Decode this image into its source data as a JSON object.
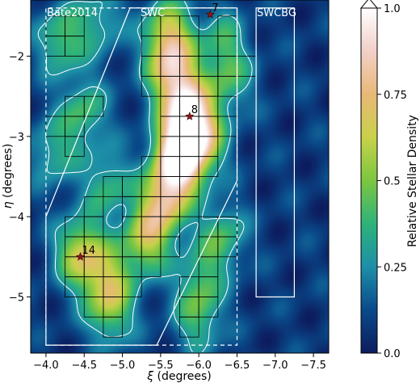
{
  "chart_data": {
    "type": "heatmap",
    "xlabel": "ξ (degrees)",
    "ylabel": "η (degrees)",
    "xlim": [
      -3.8,
      -7.7
    ],
    "ylim": [
      -5.7,
      -1.3
    ],
    "xticks": [
      -4.0,
      -4.5,
      -5.0,
      -5.5,
      -6.0,
      -6.5,
      -7.0,
      -7.5
    ],
    "xtick_labels": [
      "−4.0",
      "−4.5",
      "−5.0",
      "−5.5",
      "−6.0",
      "−6.5",
      "−7.0",
      "−7.5"
    ],
    "yticks": [
      -2,
      -3,
      -4,
      -5
    ],
    "ytick_labels": [
      "−2",
      "−3",
      "−4",
      "−5"
    ],
    "colorbar": {
      "label": "Relative Stellar Density",
      "range": [
        0.0,
        1.0
      ],
      "ticks": [
        0.0,
        0.25,
        0.5,
        0.75,
        1.0
      ],
      "tick_labels": [
        "0.0",
        "0.25",
        "0.5",
        "0.75",
        "1.0"
      ],
      "extend": "max",
      "colors": [
        "#0c1c5e",
        "#0a4a8a",
        "#1d8fa8",
        "#2eb37a",
        "#7cc640",
        "#c8d14a",
        "#e9b877",
        "#f2d0c8",
        "#ffffff"
      ]
    },
    "regions": [
      {
        "label": "Bate2014",
        "style": "dashed",
        "polygon": [
          [
            -4.0,
            -5.6
          ],
          [
            -6.5,
            -5.6
          ],
          [
            -6.5,
            -1.4
          ],
          [
            -4.0,
            -1.4
          ]
        ]
      },
      {
        "label": "SWC",
        "style": "solid",
        "polygon": [
          [
            -5.1,
            -1.4
          ],
          [
            -6.5,
            -1.4
          ],
          [
            -6.5,
            -3.55
          ],
          [
            -5.45,
            -5.6
          ],
          [
            -4.0,
            -5.6
          ],
          [
            -4.0,
            -4.0
          ]
        ]
      },
      {
        "label": "SWCBG",
        "style": "solid",
        "polygon": [
          [
            -6.75,
            -1.4
          ],
          [
            -7.25,
            -1.4
          ],
          [
            -7.25,
            -5.0
          ],
          [
            -6.75,
            -5.0
          ]
        ]
      }
    ],
    "stars": [
      {
        "label": "7",
        "xi": -6.15,
        "eta": -1.48
      },
      {
        "label": "8",
        "xi": -5.88,
        "eta": -2.75
      },
      {
        "label": "14",
        "xi": -4.45,
        "eta": -4.5
      }
    ],
    "density_peaks": [
      {
        "xi": -5.75,
        "eta": -3.25,
        "density": 1.0
      },
      {
        "xi": -5.85,
        "eta": -2.7,
        "density": 0.78
      },
      {
        "xi": -5.65,
        "eta": -2.2,
        "density": 0.6
      },
      {
        "xi": -5.55,
        "eta": -3.8,
        "density": 0.62
      },
      {
        "xi": -5.6,
        "eta": -1.7,
        "density": 0.52
      },
      {
        "xi": -5.3,
        "eta": -4.3,
        "density": 0.5
      },
      {
        "xi": -4.45,
        "eta": -4.45,
        "density": 0.55
      },
      {
        "xi": -4.8,
        "eta": -4.8,
        "density": 0.42
      },
      {
        "xi": -4.85,
        "eta": -5.2,
        "density": 0.32
      },
      {
        "xi": -6.05,
        "eta": -3.05,
        "density": 0.45
      },
      {
        "xi": -4.5,
        "eta": -2.7,
        "density": 0.32
      },
      {
        "xi": -4.2,
        "eta": -1.8,
        "density": 0.36
      },
      {
        "xi": -4.8,
        "eta": -3.6,
        "density": 0.3
      },
      {
        "xi": -6.3,
        "eta": -4.25,
        "density": 0.33
      },
      {
        "xi": -6.4,
        "eta": -2.3,
        "density": 0.28
      },
      {
        "xi": -4.1,
        "eta": -3.2,
        "density": 0.27
      },
      {
        "xi": -6.0,
        "eta": -5.3,
        "density": 0.28
      },
      {
        "xi": -4.7,
        "eta": -1.55,
        "density": 0.25
      },
      {
        "xi": -6.3,
        "eta": -1.8,
        "density": 0.26
      },
      {
        "xi": -6.0,
        "eta": -4.8,
        "density": 0.28
      }
    ]
  },
  "labels": {
    "bate": "Bate2014",
    "swc": "SWC",
    "swcbg": "SWCBG",
    "star7": "7",
    "star8": "8",
    "star14": "14",
    "xlabel_sym": "ξ",
    "xlabel_rest": " (degrees)",
    "ylabel_sym": "η",
    "ylabel_rest": " (degrees)",
    "colorbar_label": "Relative Stellar Density"
  }
}
